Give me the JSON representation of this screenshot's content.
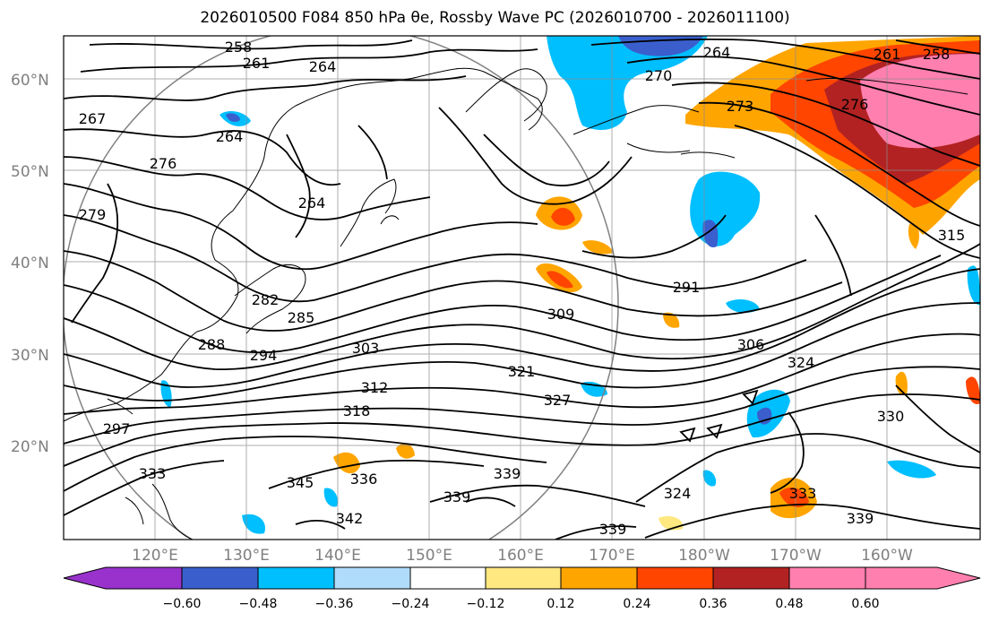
{
  "title": "2026010500 F084 850 hPa θe, Rossby Wave PC (2026010700 - 2026011100)",
  "map": {
    "lat_ticks": [
      "60°N",
      "50°N",
      "40°N",
      "30°N",
      "20°N"
    ],
    "lon_ticks": [
      "120°E",
      "130°E",
      "140°E",
      "150°E",
      "160°E",
      "170°E",
      "180°W",
      "170°W",
      "160°W"
    ],
    "contour_labels": [
      "258",
      "261",
      "264",
      "267",
      "270",
      "273",
      "276",
      "279",
      "282",
      "285",
      "288",
      "291",
      "294",
      "297",
      "303",
      "306",
      "309",
      "312",
      "315",
      "318",
      "321",
      "324",
      "327",
      "330",
      "333",
      "336",
      "339",
      "342",
      "345"
    ],
    "field_colors": {
      "strong_positive": "#ff7faf",
      "positive_3": "#b22222",
      "positive_2": "#ff4500",
      "positive_1": "#ffa500",
      "weak_positive": "#ffe87f",
      "weak_negative": "#afdcfa",
      "negative_1": "#00bfff",
      "negative_2": "#3a5fcd",
      "strong_negative": "#00008b"
    }
  },
  "colorbar": {
    "ticks": [
      "−0.60",
      "−0.48",
      "−0.36",
      "−0.24",
      "−0.12",
      "0.12",
      "0.24",
      "0.36",
      "0.48",
      "0.60"
    ],
    "colors": [
      "#9932cc",
      "#00008b",
      "#3a5fcd",
      "#00bfff",
      "#afdcfa",
      "#ffffff",
      "#ffe87f",
      "#ffa500",
      "#ff4500",
      "#b22222",
      "#ff7faf"
    ]
  }
}
